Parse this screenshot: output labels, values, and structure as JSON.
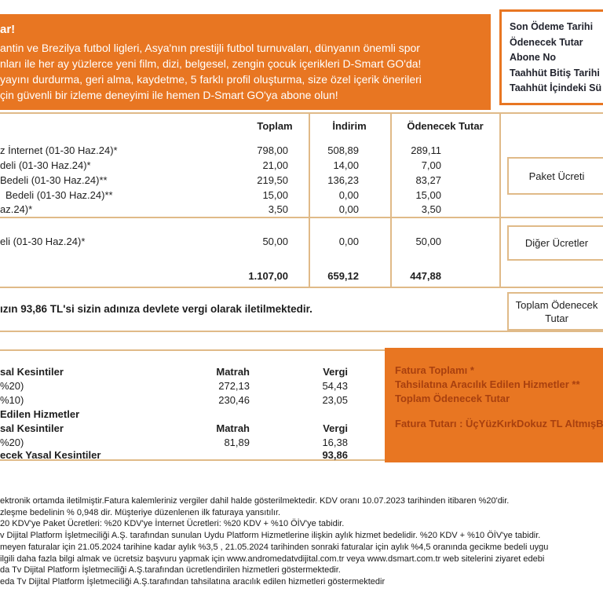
{
  "colors": {
    "orange": "#E87622",
    "line": "#E0BA88",
    "panel_text": "#A8400F",
    "ink": "#1E1E1E",
    "label_ink": "#22242E"
  },
  "banner": {
    "headline": "ar!",
    "lines": [
      "antin ve Brezilya futbol ligleri, Asya'nın prestijli futbol turnuvaları, dünyanın önemli spor",
      "nları ile her ay yüzlerce yeni film, dizi, belgesel, zengin çocuk içerikleri D-Smart GO'da!",
      "yayını durdurma, geri alma, kaydetme, 5 farklı profil oluşturma, size özel içerik önerileri",
      "çin güvenli bir izleme deneyimi ile hemen D-Smart GO'ya abone olun!"
    ]
  },
  "summary_box": {
    "labels": [
      "Son Ödeme Tarihi",
      "Ödenecek Tutar",
      "Abone No",
      "Taahhüt Bitiş Tarihi",
      "Taahhüt İçindeki Sü"
    ]
  },
  "charges": {
    "headers": {
      "total": "Toplam",
      "discount": "İndirim",
      "payable": "Ödenecek Tutar"
    },
    "package_rows": [
      {
        "label": "z İnternet (01-30 Haz.24)*",
        "total": "798,00",
        "discount": "508,89",
        "payable": "289,11"
      },
      {
        "label": "deli (01-30 Haz.24)*",
        "total": "21,00",
        "discount": "14,00",
        "payable": "7,00"
      },
      {
        "label": "Bedeli (01-30 Haz.24)**",
        "total": "219,50",
        "discount": "136,23",
        "payable": "83,27"
      },
      {
        "label": "Bedeli (01-30 Haz.24)**",
        "total": "15,00",
        "discount": "0,00",
        "payable": "15,00"
      },
      {
        "label": "az.24)*",
        "total": "3,50",
        "discount": "0,00",
        "payable": "3,50"
      }
    ],
    "other_row": {
      "label": "eli (01-30 Haz.24)*",
      "total": "50,00",
      "discount": "0,00",
      "payable": "50,00"
    },
    "totals": {
      "total": "1.107,00",
      "discount": "659,12",
      "payable": "447,88"
    },
    "side_labels": {
      "package": "Paket Ücreti",
      "other": "Diğer Ücretler",
      "payable_total": "Toplam Ödenecek Tutar"
    },
    "tax_note": "ızın 93,86 TL'si sizin adınıza devlete vergi olarak iletilmektedir."
  },
  "tax_table": {
    "rows": [
      {
        "label": "sal Kesintiler",
        "matrah": "Matrah",
        "vergi": "Vergi"
      },
      {
        "label": "%20)",
        "matrah": "272,13",
        "vergi": "54,43"
      },
      {
        "label": "%10)",
        "matrah": "230,46",
        "vergi": "23,05"
      },
      {
        "label": "Edilen Hizmetler",
        "matrah": "",
        "vergi": ""
      },
      {
        "label": "sal Kesintiler",
        "matrah": "Matrah",
        "vergi": "Vergi"
      },
      {
        "label": "%20)",
        "matrah": "81,89",
        "vergi": "16,38"
      },
      {
        "label": "ecek Yasal Kesintiler",
        "matrah": "",
        "vergi": "93,86"
      }
    ]
  },
  "panel": {
    "lines": [
      "Fatura Toplamı *",
      "Tahsilatına Aracılık Edilen Hizmetler **",
      "Toplam Ödenecek Tutar"
    ],
    "amount": "Fatura Tutarı : ÜçYüzKırkDokuz TL AltmışB"
  },
  "footnotes": [
    "ektronik ortamda iletilmiştir.Fatura kalemleriniz vergiler dahil halde gösterilmektedir. KDV oranı 10.07.2023 tarihinden itibaren %20'dir.",
    "zleşme bedelinin % 0,948 dir. Müşteriye düzenlenen ilk faturaya yansıtılır.",
    "20 KDV'ye Paket Ücretleri: %20 KDV'ye İnternet Ücretleri: %20 KDV + %10 ÖİV'ye tabidir.",
    "v Dijital Platform İşletmeciliği A.Ş. tarafından sunulan Uydu Platform Hizmetlerine ilişkin aylık hizmet bedelidir. %20 KDV + %10 ÖİV'ye tabidir.",
    "meyen faturalar için 21.05.2024 tarihine kadar aylık %3,5 , 21.05.2024 tarihinden sonraki faturalar için aylık %4,5 oranında gecikme bedeli uygu",
    "ilgili daha fazla bilgi almak ve ücretsiz başvuru yapmak için www.andromedatvdijital.com.tr veya www.dsmart.com.tr web sitelerini ziyaret edebi",
    "da Tv Dijital Platform İşletmeciliği A.Ş.tarafından ücretlendirilen hizmetleri göstermektedir.",
    "eda Tv Dijital Platform İşletmeciliği A.Ş.tarafından tahsilatına aracılık edilen hizmetleri göstermektedir"
  ]
}
